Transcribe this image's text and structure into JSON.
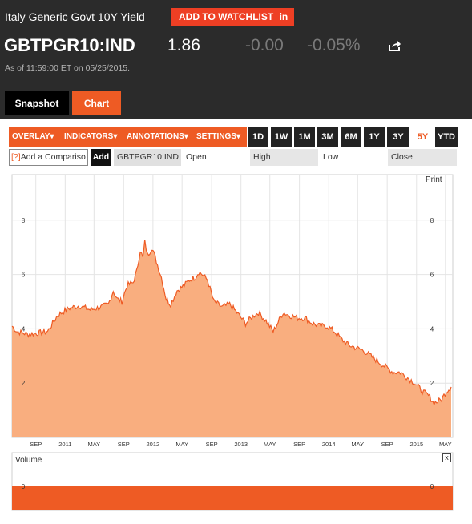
{
  "header": {
    "title": "Italy Generic Govt 10Y Yield",
    "watchlist_label": "ADD TO WATCHLIST",
    "ticker": "GBTPGR10:IND",
    "price": "1.86",
    "change": "-0.00",
    "change_pct": "-0.05%",
    "as_of": "As of 11:59:00 ET on 05/25/2015."
  },
  "tabs": {
    "snapshot": "Snapshot",
    "chart": "Chart"
  },
  "toolbar": {
    "overlay": "OVERLAY",
    "indicators": "INDICATORS",
    "annotations": "ANNOTATIONS",
    "settings": "SETTINGS",
    "ranges": [
      "1D",
      "1W",
      "1M",
      "3M",
      "6M",
      "1Y",
      "3Y",
      "5Y",
      "YTD"
    ],
    "active_range": "5Y"
  },
  "compare": {
    "placeholder": "Add a Compariso",
    "help_mark": "[?]",
    "add_label": "Add",
    "symbol": "GBTPGR10:IND",
    "open_label": "Open",
    "high_label": "High",
    "low_label": "Low",
    "close_label": "Close"
  },
  "print_label": "Print",
  "volume_label": "Volume",
  "close_icon_label": "x",
  "colors": {
    "accent": "#ee5b24",
    "fill": "#f9ae7f",
    "line": "#ee5b24",
    "header_bg": "#2b2b2b"
  },
  "chart_data": {
    "type": "area",
    "title": "",
    "x_tick_labels": [
      "SEP",
      "2011",
      "MAY",
      "SEP",
      "2012",
      "MAY",
      "SEP",
      "2013",
      "MAY",
      "SEP",
      "2014",
      "MAY",
      "SEP",
      "2015",
      "MAY"
    ],
    "y_ticks": [
      2,
      4,
      6,
      8
    ],
    "ylim": [
      0,
      9
    ],
    "x": [
      "2010-05-25",
      "2010-06-15",
      "2010-08-01",
      "2010-09-15",
      "2010-10-20",
      "2010-12-01",
      "2011-01-15",
      "2011-03-01",
      "2011-04-15",
      "2011-05-30",
      "2011-06-30",
      "2011-07-20",
      "2011-08-05",
      "2011-08-25",
      "2011-09-15",
      "2011-10-10",
      "2011-10-25",
      "2011-11-09",
      "2011-11-20",
      "2011-11-28",
      "2011-12-10",
      "2011-12-28",
      "2012-01-15",
      "2012-02-05",
      "2012-02-25",
      "2012-03-15",
      "2012-04-10",
      "2012-05-10",
      "2012-06-01",
      "2012-06-25",
      "2012-07-10",
      "2012-07-24",
      "2012-08-15",
      "2012-09-10",
      "2012-10-15",
      "2012-11-15",
      "2012-12-15",
      "2013-01-20",
      "2013-02-25",
      "2013-03-15",
      "2013-04-15",
      "2013-05-15",
      "2013-06-25",
      "2013-07-20",
      "2013-08-25",
      "2013-09-25",
      "2013-10-25",
      "2013-11-25",
      "2013-12-25",
      "2014-01-25",
      "2014-02-25",
      "2014-03-25",
      "2014-04-25",
      "2014-05-25",
      "2014-06-25",
      "2014-07-25",
      "2014-08-25",
      "2014-09-25",
      "2014-10-25",
      "2014-11-25",
      "2014-12-25",
      "2015-01-25",
      "2015-02-25",
      "2015-03-10",
      "2015-03-25",
      "2015-04-15",
      "2015-05-05",
      "2015-05-25"
    ],
    "values": [
      4.1,
      3.9,
      3.8,
      3.85,
      3.9,
      4.5,
      4.75,
      4.85,
      4.7,
      4.8,
      4.9,
      5.4,
      5.1,
      5.0,
      5.6,
      5.7,
      6.1,
      6.9,
      6.6,
      7.2,
      6.7,
      7.0,
      6.5,
      5.9,
      5.1,
      4.9,
      5.4,
      5.6,
      5.8,
      5.9,
      6.1,
      6.0,
      5.8,
      5.0,
      4.8,
      4.9,
      4.6,
      4.2,
      4.5,
      4.6,
      4.3,
      3.9,
      4.6,
      4.5,
      4.4,
      4.4,
      4.2,
      4.1,
      4.1,
      3.9,
      3.6,
      3.4,
      3.3,
      3.2,
      3.0,
      2.8,
      2.6,
      2.4,
      2.4,
      2.2,
      2.0,
      1.7,
      1.5,
      1.3,
      1.3,
      1.4,
      1.7,
      1.86
    ],
    "volume_value": 0
  }
}
